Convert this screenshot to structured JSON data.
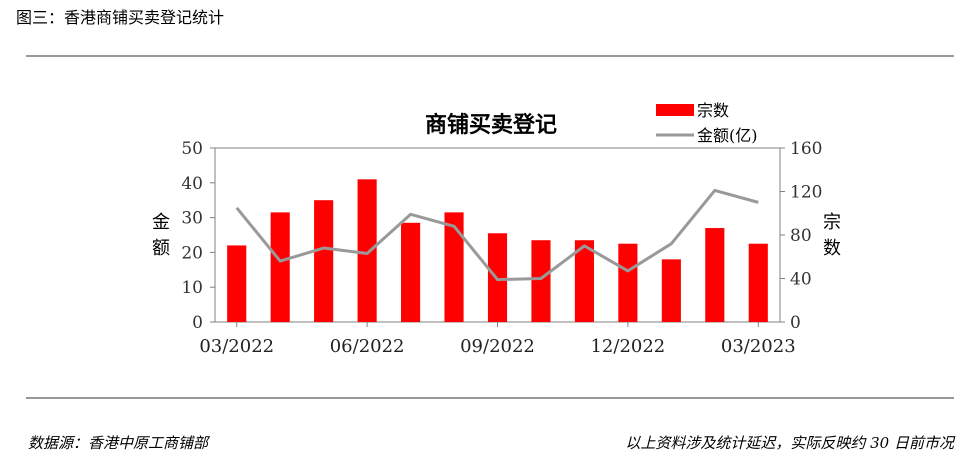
{
  "header": {
    "figure_title": "图三：香港商铺买卖登记统计"
  },
  "footer": {
    "source": "数据源：香港中原工商铺部",
    "note": "以上资料涉及统计延迟，实际反映约 30 日前市况"
  },
  "colors": {
    "bar": "#ff0000",
    "line": "#999999",
    "axis": "#808080"
  },
  "chart_data": {
    "type": "bar",
    "title": "商铺买卖登记",
    "y_left_label": "金额",
    "y_right_label": "宗数",
    "y_left_ticks": [
      "0",
      "10",
      "20",
      "30",
      "40",
      "50"
    ],
    "y_right_ticks": [
      "0",
      "40",
      "80",
      "120",
      "160"
    ],
    "y_left_lim": [
      0,
      50
    ],
    "y_right_lim": [
      0,
      160
    ],
    "x_tick_labels": [
      "03/2022",
      "06/2022",
      "09/2022",
      "12/2022",
      "03/2023"
    ],
    "categories": [
      "03/2022",
      "04/2022",
      "05/2022",
      "06/2022",
      "07/2022",
      "08/2022",
      "09/2022",
      "10/2022",
      "11/2022",
      "12/2022",
      "01/2023",
      "02/2023",
      "03/2023"
    ],
    "series": [
      {
        "name": "宗数",
        "type": "bar",
        "axis": "left",
        "values": [
          22,
          31.5,
          35,
          41,
          28.5,
          31.5,
          25.5,
          23.5,
          23.5,
          22.5,
          18,
          27,
          22.5
        ]
      },
      {
        "name": "金额(亿)",
        "type": "line",
        "axis": "right",
        "values": [
          105,
          56,
          68,
          63,
          99,
          88,
          39,
          40,
          70,
          47,
          72,
          121,
          110
        ]
      }
    ],
    "legend": "top-right"
  }
}
